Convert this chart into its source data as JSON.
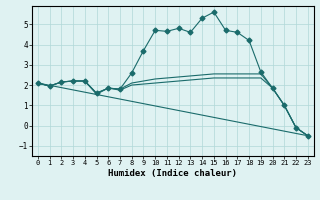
{
  "xlabel": "Humidex (Indice chaleur)",
  "ylabel": "",
  "bg_color": "#dff2f2",
  "line_color": "#1a6b6b",
  "xlim": [
    -0.5,
    23.5
  ],
  "ylim": [
    -1.5,
    5.9
  ],
  "xticks": [
    0,
    1,
    2,
    3,
    4,
    5,
    6,
    7,
    8,
    9,
    10,
    11,
    12,
    13,
    14,
    15,
    16,
    17,
    18,
    19,
    20,
    21,
    22,
    23
  ],
  "yticks": [
    -1,
    0,
    1,
    2,
    3,
    4,
    5
  ],
  "line1_x": [
    0,
    1,
    2,
    3,
    4,
    5,
    6,
    7,
    8,
    9,
    10,
    11,
    12,
    13,
    14,
    15,
    16,
    17,
    18,
    19,
    20,
    21,
    22,
    23
  ],
  "line1_y": [
    2.1,
    1.95,
    2.15,
    2.2,
    2.2,
    1.6,
    1.85,
    1.8,
    2.6,
    3.7,
    4.7,
    4.65,
    4.8,
    4.6,
    5.3,
    5.6,
    4.7,
    4.6,
    4.2,
    2.65,
    1.85,
    1.0,
    -0.1,
    -0.5
  ],
  "line2_x": [
    0,
    1,
    2,
    3,
    4,
    5,
    6,
    7,
    8,
    9,
    10,
    11,
    12,
    13,
    14,
    15,
    16,
    17,
    18,
    19,
    20,
    21,
    22,
    23
  ],
  "line2_y": [
    2.1,
    1.95,
    2.15,
    2.2,
    2.2,
    1.6,
    1.85,
    1.8,
    2.1,
    2.2,
    2.3,
    2.35,
    2.4,
    2.45,
    2.5,
    2.55,
    2.55,
    2.55,
    2.55,
    2.55,
    1.85,
    1.0,
    -0.1,
    -0.5
  ],
  "line3_x": [
    0,
    1,
    2,
    3,
    4,
    5,
    6,
    7,
    8,
    9,
    10,
    11,
    12,
    13,
    14,
    15,
    16,
    17,
    18,
    19,
    20,
    21,
    22,
    23
  ],
  "line3_y": [
    2.1,
    1.95,
    2.15,
    2.2,
    2.2,
    1.55,
    1.85,
    1.75,
    2.0,
    2.05,
    2.1,
    2.15,
    2.2,
    2.25,
    2.3,
    2.35,
    2.35,
    2.35,
    2.35,
    2.35,
    1.85,
    1.0,
    -0.1,
    -0.5
  ],
  "line4_x": [
    0,
    23
  ],
  "line4_y": [
    2.1,
    -0.5
  ],
  "grid_color": "#b0d8d8",
  "xlabel_fontsize": 6.5,
  "tick_fontsize": 5.0
}
